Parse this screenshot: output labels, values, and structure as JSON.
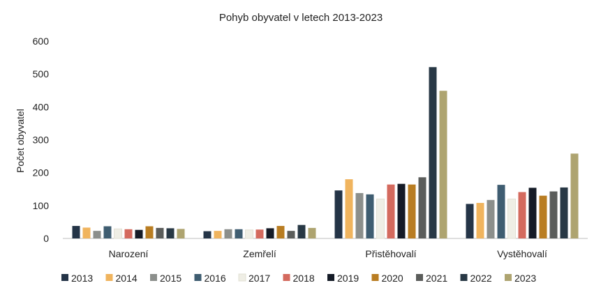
{
  "chart_data": {
    "type": "bar",
    "title": "Pohyb obyvatel v letech 2013-2023",
    "xlabel": "",
    "ylabel": "Počet obyvatel",
    "ylim": [
      0,
      600
    ],
    "yticks": [
      "0",
      "100",
      "200",
      "300",
      "400",
      "500",
      "600"
    ],
    "grid": false,
    "legend_position": "bottom",
    "categories": [
      "Narození",
      "Zemřelí",
      "Přistěhovalí",
      "Vystěhovalí"
    ],
    "series": [
      {
        "name": "2013",
        "color": "#243447",
        "values": [
          38,
          22,
          146,
          105
        ]
      },
      {
        "name": "2014",
        "color": "#f0b45e",
        "values": [
          33,
          23,
          180,
          108
        ]
      },
      {
        "name": "2015",
        "color": "#8c8f8c",
        "values": [
          23,
          28,
          138,
          117
        ]
      },
      {
        "name": "2016",
        "color": "#3f5d71",
        "values": [
          37,
          28,
          134,
          163
        ]
      },
      {
        "name": "2017",
        "color": "#efeee5",
        "values": [
          29,
          26,
          120,
          120
        ]
      },
      {
        "name": "2018",
        "color": "#d46a5e",
        "values": [
          28,
          27,
          164,
          141
        ]
      },
      {
        "name": "2019",
        "color": "#151b27",
        "values": [
          26,
          31,
          166,
          154
        ]
      },
      {
        "name": "2020",
        "color": "#b97d22",
        "values": [
          37,
          38,
          164,
          130
        ]
      },
      {
        "name": "2021",
        "color": "#5b5d5b",
        "values": [
          32,
          23,
          186,
          143
        ]
      },
      {
        "name": "2022",
        "color": "#283845",
        "values": [
          31,
          41,
          521,
          155
        ]
      },
      {
        "name": "2023",
        "color": "#aea470",
        "values": [
          29,
          32,
          449,
          258
        ]
      }
    ]
  }
}
